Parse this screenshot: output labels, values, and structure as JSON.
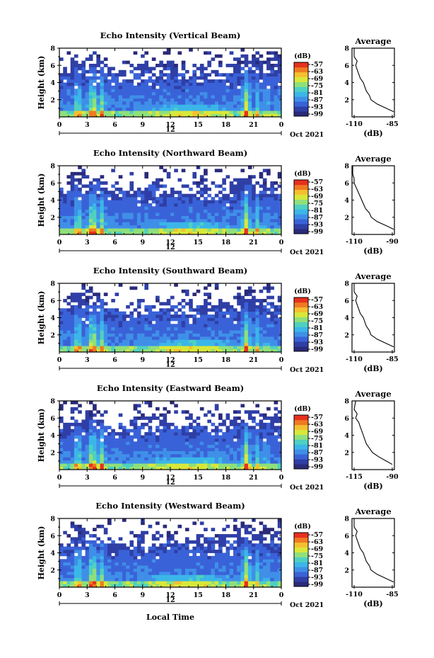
{
  "chart_data": [
    {
      "type": "heatmap",
      "title": "Echo Intensity (Vertical Beam)",
      "ylabel": "Height (km)",
      "xticks": [
        "0",
        "3",
        "6",
        "9",
        "12",
        "15",
        "18",
        "21",
        "0"
      ],
      "yticks": [
        "2",
        "4",
        "6",
        "8"
      ],
      "date_label": "12",
      "month_label": "Oct 2021",
      "colorbar_unit": "(dB)",
      "colorbar_ticks": [
        "-57",
        "-63",
        "-69",
        "-75",
        "-81",
        "-87",
        "-93",
        "-99"
      ],
      "profile": {
        "title": "Average",
        "xlabel": "(dB)",
        "xticks": [
          "-110",
          "-85"
        ],
        "yticks": [
          "2",
          "4",
          "6",
          "8"
        ],
        "heights": [
          0.6,
          1.0,
          1.5,
          2.0,
          2.5,
          3.0,
          3.5,
          4.0,
          4.5,
          5.0,
          5.5,
          6.0,
          6.5,
          7.0,
          8.0
        ],
        "values": [
          -84,
          -89,
          -95,
          -99,
          -100,
          -102,
          -103,
          -104,
          -106,
          -107,
          -108,
          -109,
          -108,
          -110,
          -110
        ]
      }
    },
    {
      "type": "heatmap",
      "title": "Echo Intensity (Northward Beam)",
      "ylabel": "Height (km)",
      "xticks": [
        "0",
        "3",
        "6",
        "9",
        "12",
        "15",
        "18",
        "21",
        "0"
      ],
      "yticks": [
        "2",
        "4",
        "6",
        "8"
      ],
      "date_label": "12",
      "month_label": "Oct 2021",
      "colorbar_unit": "(dB)",
      "colorbar_ticks": [
        "-57",
        "-63",
        "-69",
        "-75",
        "-81",
        "-87",
        "-93",
        "-99"
      ],
      "profile": {
        "title": "Average",
        "xlabel": "(dB)",
        "xticks": [
          "-110",
          "-90"
        ],
        "yticks": [
          "2",
          "4",
          "6",
          "8"
        ],
        "heights": [
          0.6,
          1.0,
          1.5,
          2.0,
          2.5,
          3.0,
          3.5,
          4.0,
          4.5,
          5.0,
          5.5,
          6.0,
          6.5,
          7.0,
          8.0
        ],
        "values": [
          -89,
          -93,
          -98,
          -101,
          -102,
          -104,
          -105,
          -106,
          -107,
          -108,
          -109,
          -110,
          -110,
          -112,
          -112
        ]
      }
    },
    {
      "type": "heatmap",
      "title": "Echo Intensity (Southward Beam)",
      "ylabel": "Height (km)",
      "xticks": [
        "0",
        "3",
        "6",
        "9",
        "12",
        "15",
        "18",
        "21",
        "0"
      ],
      "yticks": [
        "2",
        "4",
        "6",
        "8"
      ],
      "date_label": "12",
      "month_label": "Oct 2021",
      "colorbar_unit": "(dB)",
      "colorbar_ticks": [
        "-57",
        "-63",
        "-69",
        "-75",
        "-81",
        "-87",
        "-93",
        "-99"
      ],
      "profile": {
        "title": "Average",
        "xlabel": "(dB)",
        "xticks": [
          "-110",
          "-85"
        ],
        "yticks": [
          "2",
          "4",
          "6",
          "8"
        ],
        "heights": [
          0.6,
          1.0,
          1.5,
          2.0,
          2.5,
          3.0,
          3.5,
          4.0,
          4.5,
          5.0,
          5.5,
          6.0,
          6.5,
          7.0,
          8.0
        ],
        "values": [
          -84,
          -89,
          -95,
          -99,
          -100,
          -102,
          -103,
          -104,
          -106,
          -107,
          -108,
          -109,
          -108,
          -110,
          -110
        ]
      }
    },
    {
      "type": "heatmap",
      "title": "Echo Intensity (Eastward Beam)",
      "ylabel": "Height (km)",
      "xticks": [
        "0",
        "3",
        "6",
        "9",
        "12",
        "15",
        "18",
        "21",
        "0"
      ],
      "yticks": [
        "2",
        "4",
        "6",
        "8"
      ],
      "date_label": "12",
      "month_label": "Oct 2021",
      "colorbar_unit": "(dB)",
      "colorbar_ticks": [
        "-57",
        "-63",
        "-69",
        "-75",
        "-81",
        "-87",
        "-93",
        "-99"
      ],
      "profile": {
        "title": "Average",
        "xlabel": "(dB)",
        "xticks": [
          "-115",
          "-90"
        ],
        "yticks": [
          "2",
          "4",
          "6",
          "8"
        ],
        "heights": [
          0.6,
          1.0,
          1.5,
          2.0,
          2.5,
          3.0,
          3.5,
          4.0,
          4.5,
          5.0,
          5.5,
          6.0,
          6.5,
          7.0,
          8.0
        ],
        "values": [
          -90,
          -94,
          -99,
          -103,
          -105,
          -107,
          -108,
          -109,
          -110,
          -111,
          -112,
          -114,
          -113,
          -115,
          -114
        ]
      }
    },
    {
      "type": "heatmap",
      "title": "Echo Intensity (Westward Beam)",
      "ylabel": "Height (km)",
      "xticks": [
        "0",
        "3",
        "6",
        "9",
        "12",
        "15",
        "18",
        "21",
        "0"
      ],
      "yticks": [
        "2",
        "4",
        "6",
        "8"
      ],
      "date_label": "12",
      "month_label": "Oct 2021",
      "colorbar_unit": "(dB)",
      "colorbar_ticks": [
        "-57",
        "-63",
        "-69",
        "-75",
        "-81",
        "-87",
        "-93",
        "-99"
      ],
      "profile": {
        "title": "Average",
        "xlabel": "(dB)",
        "xticks": [
          "-110",
          "-85"
        ],
        "yticks": [
          "2",
          "4",
          "6",
          "8"
        ],
        "heights": [
          0.6,
          1.0,
          1.5,
          2.0,
          2.5,
          3.0,
          3.5,
          4.0,
          4.5,
          5.0,
          5.5,
          6.0,
          6.5,
          7.0,
          8.0
        ],
        "values": [
          -84,
          -89,
          -95,
          -99,
          -100,
          -102,
          -103,
          -104,
          -106,
          -107,
          -108,
          -109,
          -108,
          -110,
          -110
        ]
      }
    }
  ],
  "xlabel": "Local Time",
  "colors": {
    "background": "#ffffff",
    "colormap": [
      "#2a2a7a",
      "#2f3fa6",
      "#3a62d8",
      "#3f8fe8",
      "#3bb6e8",
      "#4fd0c0",
      "#8fe07a",
      "#d8e83a",
      "#f5c030",
      "#f07a22",
      "#e8301e"
    ]
  }
}
